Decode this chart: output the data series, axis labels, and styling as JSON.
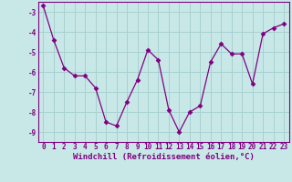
{
  "x": [
    0,
    1,
    2,
    3,
    4,
    5,
    6,
    7,
    8,
    9,
    10,
    11,
    12,
    13,
    14,
    15,
    16,
    17,
    18,
    19,
    20,
    21,
    22,
    23
  ],
  "y": [
    -2.7,
    -4.4,
    -5.8,
    -6.2,
    -6.2,
    -6.8,
    -8.5,
    -8.7,
    -7.5,
    -6.4,
    -4.9,
    -5.4,
    -7.9,
    -9.0,
    -8.0,
    -7.7,
    -5.5,
    -4.6,
    -5.1,
    -5.1,
    -6.6,
    -4.1,
    -3.8,
    -3.6
  ],
  "line_color": "#800080",
  "marker": "D",
  "marker_size": 2.5,
  "bg_color": "#c8e8e8",
  "grid_color": "#a8d0d0",
  "xlabel": "Windchill (Refroidissement éolien,°C)",
  "ylim": [
    -9.5,
    -2.5
  ],
  "xlim": [
    -0.5,
    23.5
  ],
  "yticks": [
    -9,
    -8,
    -7,
    -6,
    -5,
    -4,
    -3
  ],
  "xticks": [
    0,
    1,
    2,
    3,
    4,
    5,
    6,
    7,
    8,
    9,
    10,
    11,
    12,
    13,
    14,
    15,
    16,
    17,
    18,
    19,
    20,
    21,
    22,
    23
  ],
  "tick_color": "#800080",
  "label_color": "#800080",
  "font_family": "monospace",
  "tick_fontsize": 5.5,
  "xlabel_fontsize": 6.5
}
